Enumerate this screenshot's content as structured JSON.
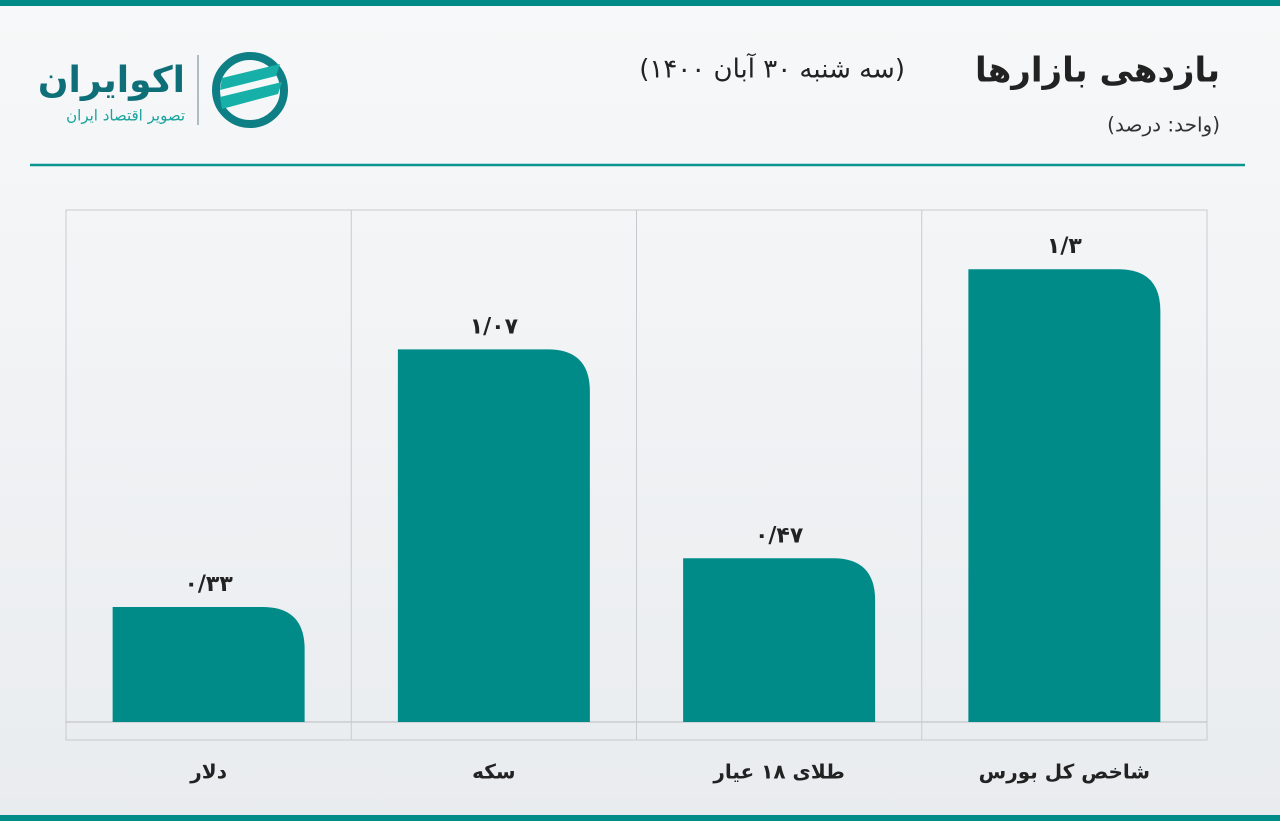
{
  "brand": {
    "name": "اکوایران",
    "tagline": "تصویر اقتصاد ایران"
  },
  "chart_data": {
    "type": "bar",
    "title": "بازدهی بازارها",
    "subtitle": "(سه شنبه ۳۰ آبان ۱۴۰۰)",
    "unit_note": "(واحد: درصد)",
    "categories": [
      "دلار",
      "سکه",
      "طلای ۱۸ عیار",
      "شاخص کل بورس"
    ],
    "values": [
      0.33,
      1.07,
      0.47,
      1.3
    ],
    "value_labels": [
      "۰/۳۳",
      "۱/۰۷",
      "۰/۴۷",
      "۱/۳"
    ],
    "color": "#008b89",
    "ylim": [
      0,
      1.47
    ]
  }
}
